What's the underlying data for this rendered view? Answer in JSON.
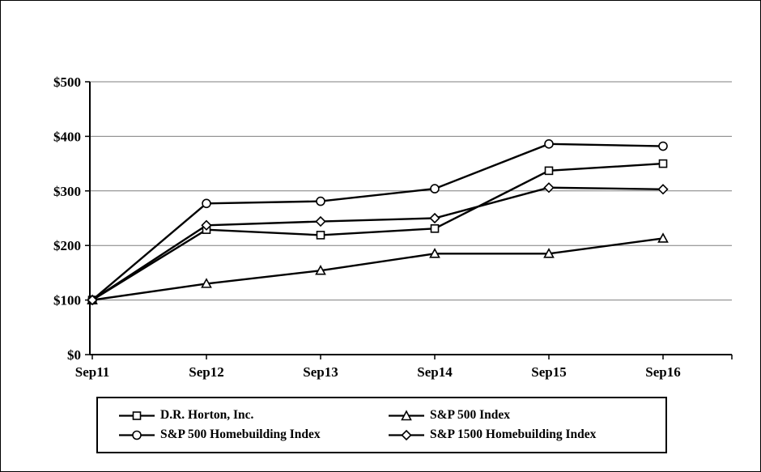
{
  "chart_data": {
    "type": "line",
    "title": "",
    "xlabel": "",
    "ylabel": "",
    "categories": [
      "Sep11",
      "Sep12",
      "Sep13",
      "Sep14",
      "Sep15",
      "Sep16"
    ],
    "series": [
      {
        "name": "D.R. Horton, Inc.",
        "marker": "square",
        "values": [
          100,
          229,
          219,
          231,
          337,
          350
        ]
      },
      {
        "name": "S&P 500 Index",
        "marker": "triangle",
        "values": [
          100,
          130,
          154,
          185,
          185,
          213
        ]
      },
      {
        "name": "S&P 500 Homebuilding Index",
        "marker": "circle",
        "values": [
          100,
          277,
          281,
          304,
          386,
          382
        ]
      },
      {
        "name": "S&P 1500 Homebuilding Index",
        "marker": "diamond",
        "values": [
          100,
          237,
          244,
          250,
          306,
          303
        ]
      }
    ],
    "ylim": [
      0,
      500
    ],
    "y_ticks": [
      0,
      100,
      200,
      300,
      400,
      500
    ],
    "y_tick_labels": [
      "$0",
      "$100",
      "$200",
      "$300",
      "$400",
      "$500"
    ],
    "grid": "horizontal",
    "legend_position": "bottom",
    "colors": {
      "line": "#000000",
      "marker_fill": "#ffffff",
      "grid": "#7f7f7f",
      "axis": "#000000"
    }
  }
}
